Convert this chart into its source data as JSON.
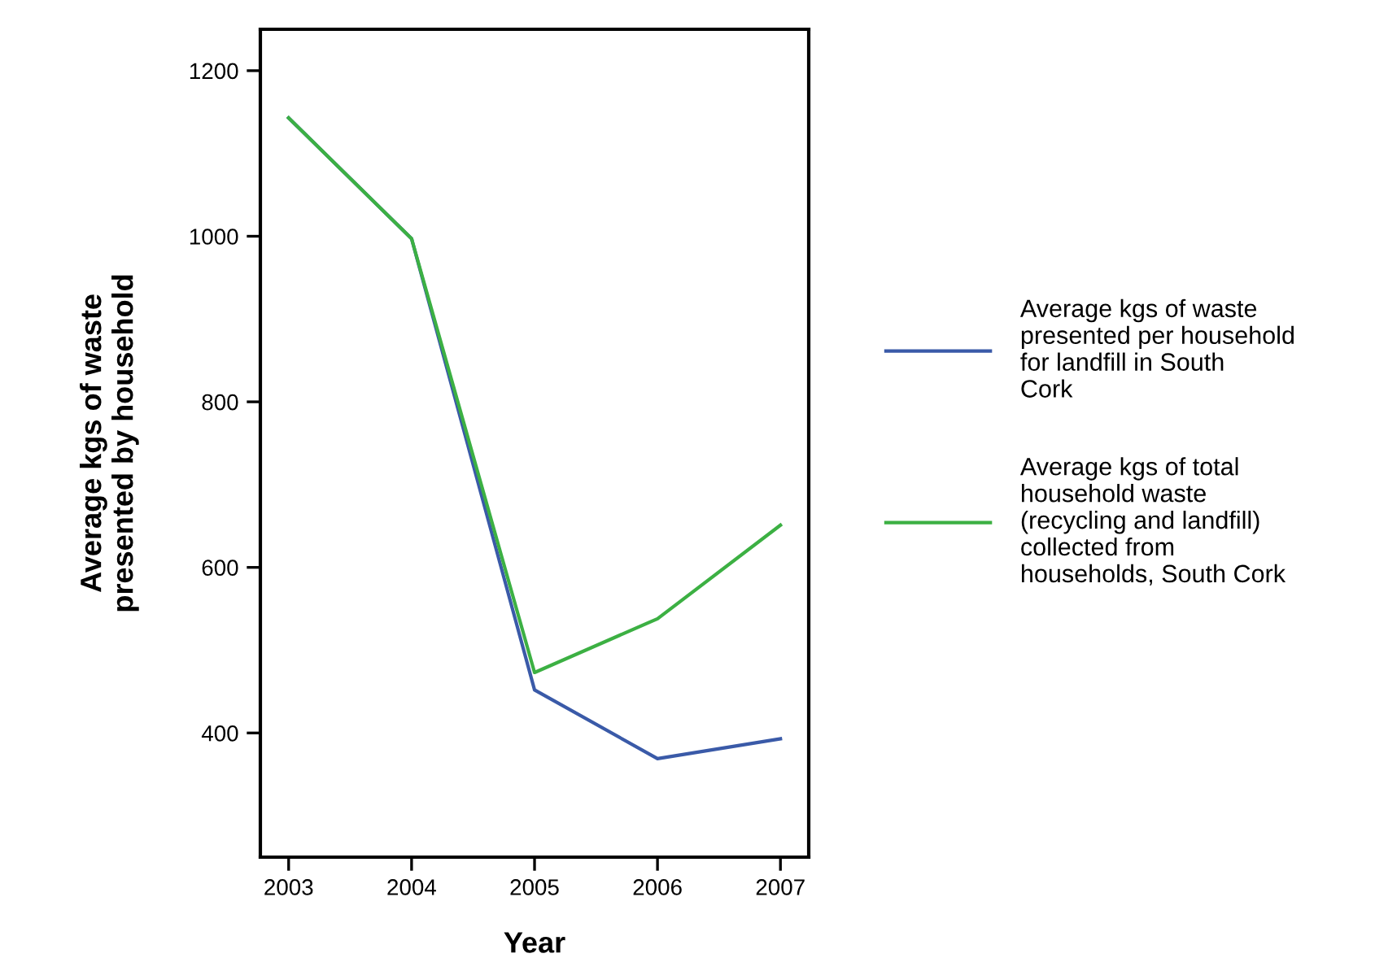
{
  "chart_data": {
    "type": "line",
    "xlabel": "Year",
    "ylabel": "Average kgs of waste\npresented by household",
    "x": [
      2003,
      2004,
      2005,
      2006,
      2007
    ],
    "series": [
      {
        "name": "Average kgs of waste presented per household for landfill in South Cork",
        "color": "#3a5aa8",
        "values": [
          1143,
          997,
          452,
          369,
          393
        ]
      },
      {
        "name": "Average kgs of total household waste (recycling and landfill) collected from households, South Cork",
        "color": "#3cb043",
        "values": [
          1143,
          997,
          473,
          538,
          651
        ]
      }
    ],
    "xlim": [
      2002.77,
      2007.23
    ],
    "xticks": [
      2003,
      2004,
      2005,
      2006,
      2007
    ],
    "ylim": [
      250,
      1250
    ],
    "yticks": [
      400,
      600,
      800,
      1000,
      1200
    ],
    "grid": false,
    "legend": "right",
    "marker": "none",
    "line_style": "solid"
  }
}
